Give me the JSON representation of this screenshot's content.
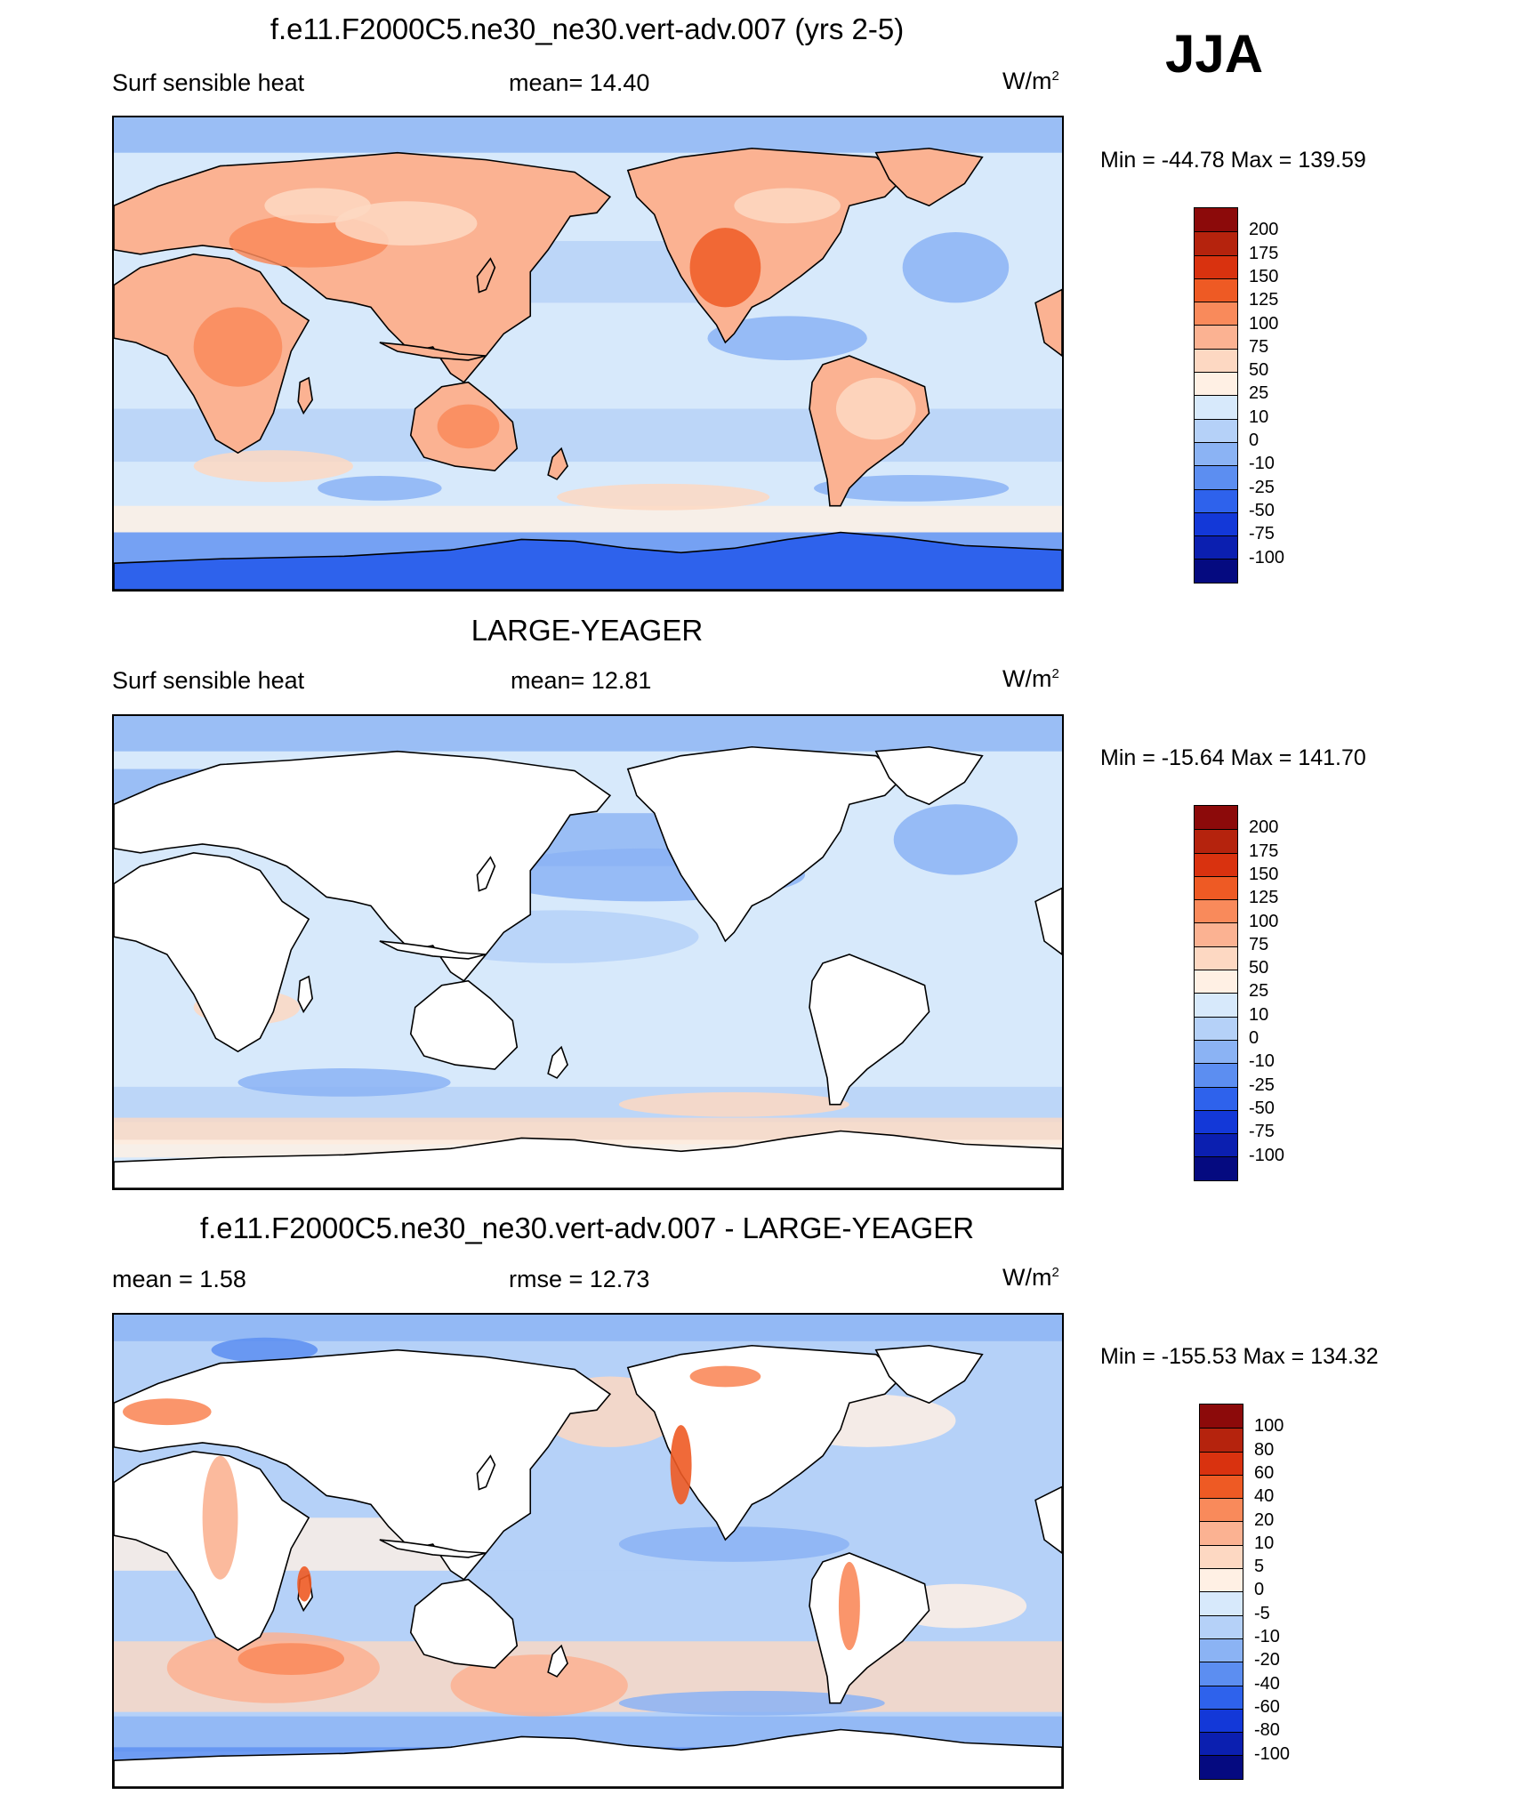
{
  "season": "JJA",
  "panels": [
    {
      "title": "f.e11.F2000C5.ne30_ne30.vert-adv.007 (yrs 2-5)",
      "left_label": "Surf sensible heat",
      "center_label": "mean=  14.40",
      "unit_base": "W/m",
      "unit_exp": "2",
      "minmax": "Min = -44.78 Max = 139.59",
      "colorbar_labels": [
        "200",
        "175",
        "150",
        "125",
        "100",
        "75",
        "50",
        "25",
        "10",
        "0",
        "-10",
        "-25",
        "-50",
        "-75",
        "-100"
      ],
      "colorbar_colors": [
        "#8c0a0a",
        "#b5230d",
        "#d9320f",
        "#ee5a24",
        "#f98a5b",
        "#fbb292",
        "#fdd8c2",
        "#fff0e4",
        "#d7e9fb",
        "#b5d1f8",
        "#8bb3f4",
        "#5c8ef1",
        "#2e62ec",
        "#1338d8",
        "#0b1fb0",
        "#050a80"
      ],
      "ocean": "light-blue",
      "land": "warm"
    },
    {
      "title": "LARGE-YEAGER",
      "left_label": "Surf sensible heat",
      "center_label": "mean=  12.81",
      "unit_base": "W/m",
      "unit_exp": "2",
      "minmax": "Min = -15.64 Max = 141.70",
      "colorbar_labels": [
        "200",
        "175",
        "150",
        "125",
        "100",
        "75",
        "50",
        "25",
        "10",
        "0",
        "-10",
        "-25",
        "-50",
        "-75",
        "-100"
      ],
      "colorbar_colors": [
        "#8c0a0a",
        "#b5230d",
        "#d9320f",
        "#ee5a24",
        "#f98a5b",
        "#fbb292",
        "#fdd8c2",
        "#fff0e4",
        "#d7e9fb",
        "#b5d1f8",
        "#8bb3f4",
        "#5c8ef1",
        "#2e62ec",
        "#1338d8",
        "#0b1fb0",
        "#050a80"
      ],
      "ocean": "light-blue",
      "land": "white"
    },
    {
      "title": "f.e11.F2000C5.ne30_ne30.vert-adv.007 - LARGE-YEAGER",
      "left_label": "mean =   1.58",
      "center_label": "rmse =  12.73",
      "unit_base": "W/m",
      "unit_exp": "2",
      "minmax": "Min = -155.53 Max = 134.32",
      "colorbar_labels": [
        "100",
        "80",
        "60",
        "40",
        "20",
        "10",
        "5",
        "0",
        "-5",
        "-10",
        "-20",
        "-40",
        "-60",
        "-80",
        "-100"
      ],
      "colorbar_colors": [
        "#8c0a0a",
        "#b5230d",
        "#d9320f",
        "#ee5a24",
        "#f98a5b",
        "#fbb292",
        "#fdd8c2",
        "#fff0e4",
        "#d7e9fb",
        "#b5d1f8",
        "#8bb3f4",
        "#5c8ef1",
        "#2e62ec",
        "#1338d8",
        "#0b1fb0",
        "#050a80"
      ],
      "ocean": "mixed",
      "land": "white"
    }
  ]
}
